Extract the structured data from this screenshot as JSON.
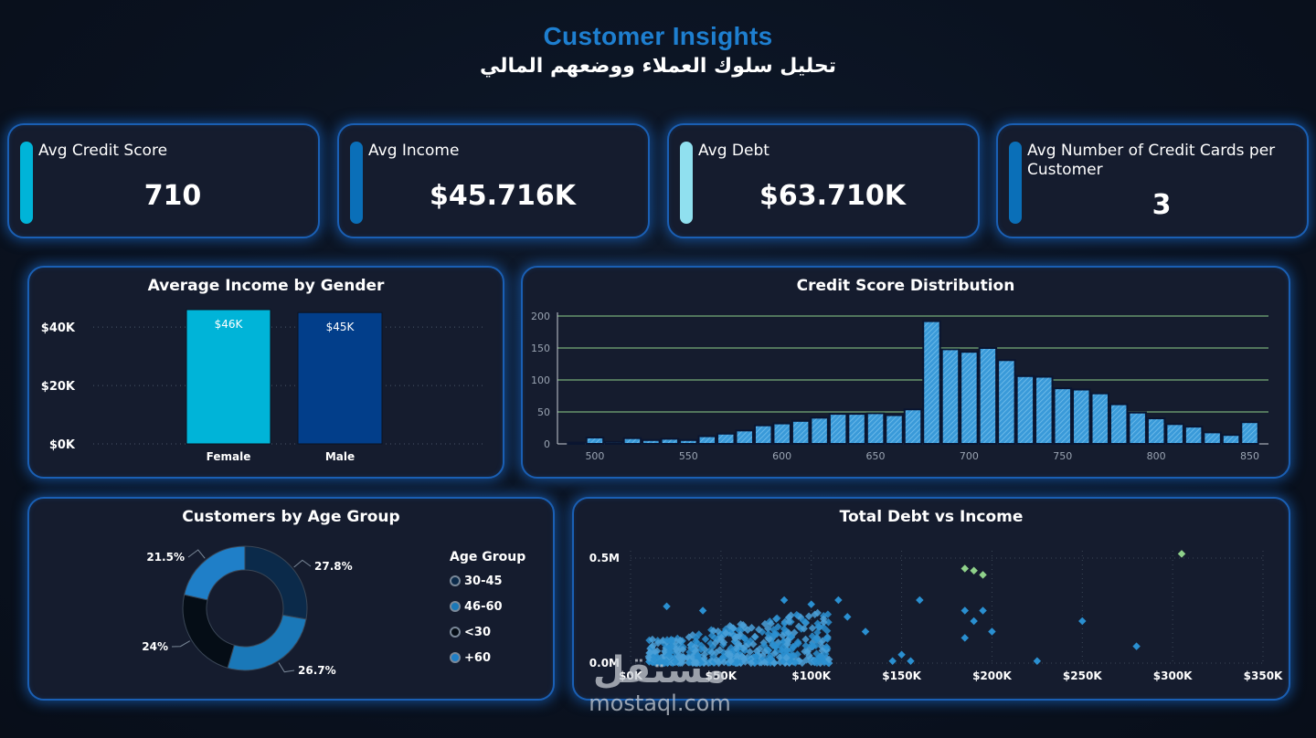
{
  "header": {
    "title": "Customer Insights",
    "subtitle": "تحليل سلوك العملاء ووضعهم المالي"
  },
  "kpis": [
    {
      "label": "Avg Credit Score",
      "value": "710",
      "color": "#00b4d8"
    },
    {
      "label": "Avg Income",
      "value": "$45.716K",
      "color": "#0a6fb8"
    },
    {
      "label": "Avg Debt",
      "value": "$63.710K",
      "color": "#90e0ef"
    },
    {
      "label": "Avg Number of Credit Cards per Customer",
      "value": "3",
      "color": "#0a6fb8"
    }
  ],
  "charts": {
    "income_gender": {
      "title": "Average Income by Gender"
    },
    "credit_dist": {
      "title": "Credit Score Distribution"
    },
    "age_group": {
      "title": "Customers by Age Group"
    },
    "debt_income": {
      "title": "Total Debt vs Income"
    }
  },
  "legend": {
    "title": "Age Group",
    "items": [
      "30-45",
      "46-60",
      "<30",
      "+60"
    ]
  },
  "watermark": {
    "logo": "مستقل",
    "url": "mostaql.com"
  },
  "chart_data": [
    {
      "type": "bar",
      "title": "Average Income by Gender",
      "categories": [
        "Female",
        "Male"
      ],
      "values": [
        46000,
        45000
      ],
      "data_labels": [
        "$46K",
        "$45K"
      ],
      "colors": [
        "#00b4d8",
        "#023e8a"
      ],
      "yticks": [
        "$0K",
        "$20K",
        "$40K"
      ],
      "ylim": [
        0,
        46000
      ],
      "grid": true
    },
    {
      "type": "bar",
      "title": "Credit Score Distribution",
      "xlabel": "",
      "ylabel": "",
      "bins_start": 485,
      "bin_width": 10,
      "values": [
        2,
        10,
        3,
        9,
        6,
        8,
        6,
        12,
        16,
        21,
        29,
        32,
        36,
        41,
        47,
        47,
        48,
        45,
        54,
        192,
        148,
        144,
        150,
        131,
        106,
        105,
        87,
        85,
        79,
        62,
        49,
        40,
        31,
        27,
        18,
        14,
        34
      ],
      "xticks": [
        500,
        550,
        600,
        650,
        700,
        750,
        800,
        850
      ],
      "yticks": [
        0,
        50,
        100,
        150,
        200
      ],
      "xlim": [
        480,
        860
      ],
      "ylim": [
        0,
        200
      ],
      "bar_color": "#3a9ad9",
      "grid_color": "#8fd18a"
    },
    {
      "type": "pie",
      "title": "Customers by Age Group",
      "labels": [
        "30-45",
        "46-60",
        "<30",
        "+60"
      ],
      "values": [
        27.8,
        26.7,
        24,
        21.5
      ],
      "data_labels": [
        "27.8%",
        "26.7%",
        "24%",
        "21.5%"
      ],
      "colors": [
        "#0b2a4a",
        "#1a78b8",
        "#050d16",
        "#1f7fc8"
      ]
    },
    {
      "type": "scatter",
      "title": "Total Debt vs Income",
      "xticks": [
        "$0K",
        "$50K",
        "$100K",
        "$150K",
        "$200K",
        "$250K",
        "$300K",
        "$350K"
      ],
      "yticks": [
        "0.0M",
        "0.5M"
      ],
      "xlim": [
        0,
        350000
      ],
      "ylim": [
        0,
        500000
      ],
      "outliers": [
        [
          20000,
          270000
        ],
        [
          40000,
          250000
        ],
        [
          85000,
          300000
        ],
        [
          100000,
          280000
        ],
        [
          115000,
          300000
        ],
        [
          120000,
          220000
        ],
        [
          130000,
          150000
        ],
        [
          160000,
          300000
        ],
        [
          150000,
          40000
        ],
        [
          145000,
          10000
        ],
        [
          155000,
          10000
        ],
        [
          185000,
          450000
        ],
        [
          190000,
          440000
        ],
        [
          195000,
          420000
        ],
        [
          185000,
          250000
        ],
        [
          195000,
          250000
        ],
        [
          190000,
          200000
        ],
        [
          200000,
          150000
        ],
        [
          185000,
          120000
        ],
        [
          225000,
          10000
        ],
        [
          250000,
          200000
        ],
        [
          280000,
          80000
        ],
        [
          305000,
          520000
        ]
      ],
      "cluster": {
        "x_range": [
          10000,
          110000
        ],
        "y_max": 250000
      },
      "colors": [
        "#2a8fd0",
        "#4aa0d8",
        "#8fd18a"
      ]
    }
  ]
}
